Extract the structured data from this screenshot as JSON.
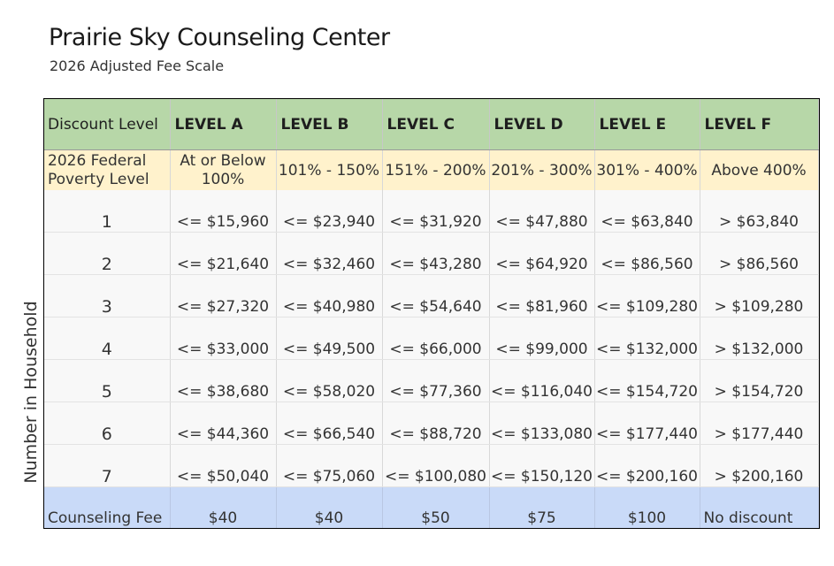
{
  "header": {
    "title": "Prairie Sky Counseling Center",
    "subtitle": "2026 Adjusted Fee Scale"
  },
  "side_label": "Number in Household",
  "table": {
    "header_label": "Discount Level",
    "levels": [
      "LEVEL A",
      "LEVEL B",
      "LEVEL C",
      "LEVEL D",
      "LEVEL E",
      "LEVEL F"
    ],
    "fpl_label": "2026 Federal Poverty Level",
    "fpl_ranges": [
      "At or Below 100%",
      "101% - 150%",
      "151% - 200%",
      "201% - 300%",
      "301% - 400%",
      "Above 400%"
    ],
    "rows": [
      {
        "household": "1",
        "values": [
          "<= $15,960",
          "<= $23,940",
          "<= $31,920",
          "<= $47,880",
          "<= $63,840",
          "> $63,840"
        ]
      },
      {
        "household": "2",
        "values": [
          "<= $21,640",
          "<= $32,460",
          "<= $43,280",
          "<= $64,920",
          "<= $86,560",
          "> $86,560"
        ]
      },
      {
        "household": "3",
        "values": [
          "<= $27,320",
          "<= $40,980",
          "<= $54,640",
          "<= $81,960",
          "<= $109,280",
          "> $109,280"
        ]
      },
      {
        "household": "4",
        "values": [
          "<= $33,000",
          "<= $49,500",
          "<= $66,000",
          "<= $99,000",
          "<= $132,000",
          "> $132,000"
        ]
      },
      {
        "household": "5",
        "values": [
          "<= $38,680",
          "<= $58,020",
          "<= $77,360",
          "<= $116,040",
          "<= $154,720",
          "> $154,720"
        ]
      },
      {
        "household": "6",
        "values": [
          "<= $44,360",
          "<= $66,540",
          "<= $88,720",
          "<= $133,080",
          "<= $177,440",
          "> $177,440"
        ]
      },
      {
        "household": "7",
        "values": [
          "<= $50,040",
          "<= $75,060",
          "<= $100,080",
          "<= $150,120",
          "<= $200,160",
          "> $200,160"
        ]
      }
    ],
    "fee_label": "Counseling Fee",
    "fees": [
      "$40",
      "$40",
      "$50",
      "$75",
      "$100",
      "No discount"
    ]
  },
  "colors": {
    "header_bg": "#b7d7a8",
    "fpl_bg": "#fff2cc",
    "fee_bg": "#c9daf8",
    "row_bg": "#f8f8f8"
  }
}
